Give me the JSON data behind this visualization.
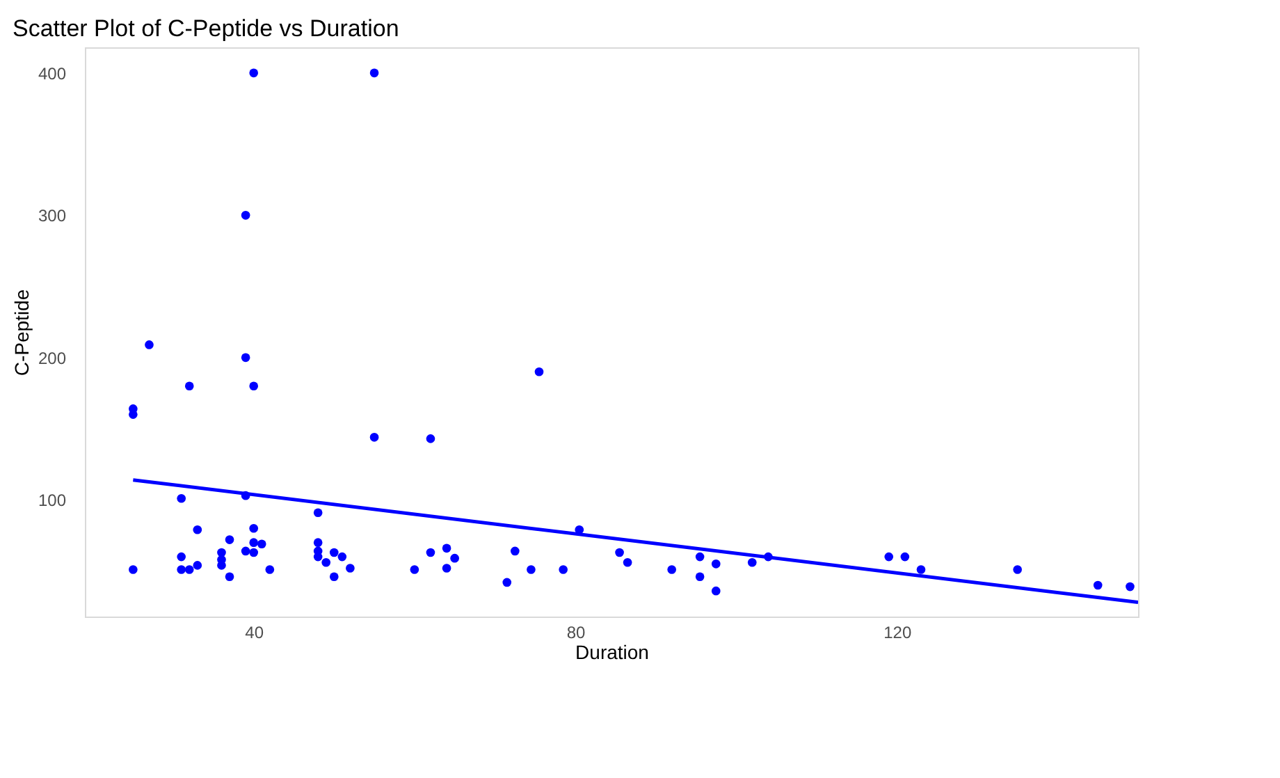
{
  "chart_data": {
    "type": "scatter",
    "title": "Scatter Plot of C-Peptide vs Duration",
    "xlabel": "Duration",
    "ylabel": "C-Peptide",
    "xlim": [
      19,
      150
    ],
    "ylim": [
      18,
      418
    ],
    "xticks": [
      40,
      80,
      120
    ],
    "yticks": [
      100,
      200,
      300,
      400
    ],
    "series": [
      {
        "color": "#0000ff",
        "marker": "circle",
        "x": [
          40,
          55,
          39,
          27,
          39,
          25,
          25,
          32,
          40,
          55,
          62,
          75.5,
          31,
          39,
          33,
          40,
          37,
          40,
          41,
          48,
          48,
          31,
          36,
          36,
          36,
          39,
          40,
          33,
          25,
          31,
          32,
          37,
          42,
          48,
          48,
          50,
          51,
          49,
          52,
          50,
          60,
          62,
          64,
          65,
          64,
          72.5,
          71.5,
          74.5,
          78.5,
          80.5,
          85.5,
          86.5,
          92,
          95.5,
          95.5,
          97.5,
          97.5,
          102,
          104,
          119,
          121,
          123,
          135,
          145,
          149
        ],
        "values": [
          400,
          400,
          300,
          209,
          200,
          164,
          160,
          180,
          180,
          144,
          143,
          190,
          101,
          103,
          79,
          80,
          72,
          70,
          69,
          91,
          70,
          60,
          63,
          58,
          54,
          64,
          63,
          54,
          51,
          51,
          51,
          46,
          51,
          64,
          60,
          63,
          60,
          56,
          52,
          46,
          51,
          63,
          66,
          59,
          52,
          64,
          42,
          51,
          51,
          79,
          63,
          56,
          51,
          60,
          46,
          55,
          36,
          56,
          60,
          60,
          60,
          51,
          51,
          40,
          39
        ]
      },
      {
        "type": "line",
        "color": "#0000ff",
        "x": [
          25,
          150
        ],
        "values": [
          114,
          28
        ],
        "marker": "none",
        "line_style": "solid"
      }
    ]
  }
}
